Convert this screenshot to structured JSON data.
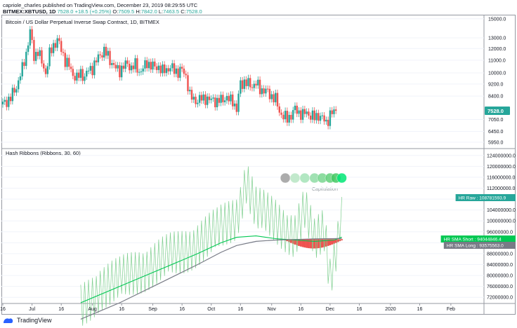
{
  "header": {
    "line1": "capriole_charles published on TradingView.com, December 23, 2019 08:29:55 UTC",
    "symbol": "BITMEX:XBTUSD, 1D",
    "last": "7528.0",
    "change": "+18.5 (+0.25%)",
    "open_label": "O:",
    "open": "7509.5",
    "high_label": "H:",
    "high": "7842.0",
    "low_label": "L:",
    "low": "7463.5",
    "close_label": "C:",
    "close": "7528.0"
  },
  "price_pane": {
    "title": "Bitcoin / US Dollar Perpetual Inverse Swap Contract, 1D, BITMEX",
    "last_badge": "7528.0",
    "colors": {
      "up": "#26a69a",
      "down": "#ef5350",
      "badge": "#26a69a"
    }
  },
  "indicator_pane": {
    "title": "Hash Ribbons (Ribbons, 30, 60)",
    "capitulation_label": "Capitulation",
    "badges": [
      {
        "label": "HR Raw",
        "value": "108781593.9",
        "color": "#26a69a"
      },
      {
        "label": "HR SMA Short",
        "value": "94044846.4",
        "color": "#00c853"
      },
      {
        "label": "HR SMA Long",
        "value": "93575563.0",
        "color": "#787b86"
      }
    ]
  },
  "footer": {
    "brand": "TradingView"
  },
  "chart_data": [
    {
      "type": "candlestick",
      "title": "Bitcoin / US Dollar Perpetual Inverse Swap Contract, 1D, BITMEX",
      "scale": "log",
      "y_ticks": [
        5950,
        6450,
        7050,
        7528,
        8400,
        9200,
        10000,
        11000,
        12000,
        13000,
        15000
      ],
      "x_ticks": [
        "16",
        "Jul",
        "16",
        "Aug",
        "16",
        "Sep",
        "16",
        "Oct",
        "16",
        "Nov",
        "16",
        "Dec",
        "16",
        "2020",
        "16",
        "Feb"
      ],
      "x_range_days": [
        0,
        247
      ],
      "x_tick_days": [
        0,
        15,
        30,
        46,
        61,
        77,
        92,
        107,
        122,
        138,
        153,
        168,
        183,
        199,
        214,
        230
      ],
      "close_path": [
        [
          0,
          7900
        ],
        [
          4,
          8300
        ],
        [
          7,
          9000
        ],
        [
          10,
          10300
        ],
        [
          12,
          11600
        ],
        [
          14,
          13600
        ],
        [
          16,
          11300
        ],
        [
          18,
          11800
        ],
        [
          20,
          10800
        ],
        [
          22,
          10000
        ],
        [
          24,
          11500
        ],
        [
          26,
          12300
        ],
        [
          28,
          12800
        ],
        [
          30,
          11900
        ],
        [
          32,
          11000
        ],
        [
          34,
          10500
        ],
        [
          36,
          9900
        ],
        [
          38,
          9600
        ],
        [
          40,
          10000
        ],
        [
          42,
          9700
        ],
        [
          44,
          10200
        ],
        [
          46,
          10400
        ],
        [
          48,
          10900
        ],
        [
          50,
          11500
        ],
        [
          52,
          11800
        ],
        [
          54,
          11300
        ],
        [
          56,
          10800
        ],
        [
          58,
          10300
        ],
        [
          60,
          10200
        ],
        [
          62,
          10500
        ],
        [
          64,
          10700
        ],
        [
          66,
          10400
        ],
        [
          68,
          10600
        ],
        [
          70,
          10100
        ],
        [
          72,
          10300
        ],
        [
          74,
          10800
        ],
        [
          76,
          10600
        ],
        [
          78,
          10400
        ],
        [
          80,
          10500
        ],
        [
          82,
          10100
        ],
        [
          84,
          10300
        ],
        [
          86,
          10400
        ],
        [
          88,
          10200
        ],
        [
          90,
          10100
        ],
        [
          92,
          10200
        ],
        [
          94,
          9800
        ],
        [
          96,
          8400
        ],
        [
          98,
          8200
        ],
        [
          100,
          8100
        ],
        [
          102,
          8250
        ],
        [
          104,
          8300
        ],
        [
          106,
          8100
        ],
        [
          108,
          8250
        ],
        [
          110,
          8000
        ],
        [
          112,
          8200
        ],
        [
          114,
          8300
        ],
        [
          116,
          8150
        ],
        [
          118,
          8200
        ],
        [
          120,
          7500
        ],
        [
          122,
          9300
        ],
        [
          124,
          9300
        ],
        [
          126,
          9200
        ],
        [
          128,
          9100
        ],
        [
          130,
          9200
        ],
        [
          132,
          8900
        ],
        [
          134,
          8750
        ],
        [
          136,
          8650
        ],
        [
          138,
          8400
        ],
        [
          140,
          8200
        ],
        [
          142,
          7500
        ],
        [
          144,
          7200
        ],
        [
          146,
          7100
        ],
        [
          148,
          7300
        ],
        [
          150,
          7600
        ],
        [
          152,
          7450
        ],
        [
          154,
          7300
        ],
        [
          156,
          7450
        ],
        [
          158,
          7250
        ],
        [
          160,
          7150
        ],
        [
          162,
          7300
        ],
        [
          164,
          7100
        ],
        [
          166,
          6900
        ],
        [
          168,
          7300
        ],
        [
          170,
          7450
        ],
        [
          171,
          7528
        ]
      ]
    },
    {
      "type": "line",
      "title": "Hash Ribbons (Ribbons, 30, 60)",
      "y_ticks": [
        72000000,
        76000000,
        80000000,
        84000000,
        88000000,
        92000000,
        96000000,
        100000000,
        104000000,
        108000000,
        112000000,
        116000000,
        120000000,
        124000000
      ],
      "series": [
        {
          "name": "HR Raw",
          "color": "#26a69a",
          "points": [
            [
              40,
              68000000
            ],
            [
              50,
              76000000
            ],
            [
              60,
              78000000
            ],
            [
              70,
              82000000
            ],
            [
              80,
              85000000
            ],
            [
              90,
              88000000
            ],
            [
              100,
              92000000
            ],
            [
              110,
              96000000
            ],
            [
              120,
              102000000
            ],
            [
              125,
              115000000
            ],
            [
              130,
              104000000
            ],
            [
              140,
              100000000
            ],
            [
              150,
              95000000
            ],
            [
              155,
              104000000
            ],
            [
              160,
              92000000
            ],
            [
              165,
              97000000
            ],
            [
              168,
              80000000
            ],
            [
              172,
              94000000
            ],
            [
              174,
              108781593.9
            ]
          ]
        },
        {
          "name": "HR SMA Short",
          "color": "#00c853",
          "points": [
            [
              40,
              70000000
            ],
            [
              60,
              76000000
            ],
            [
              80,
              82000000
            ],
            [
              100,
              88000000
            ],
            [
              112,
              92000000
            ],
            [
              120,
              94000000
            ],
            [
              130,
              94500000
            ],
            [
              140,
              93500000
            ],
            [
              150,
              93000000
            ],
            [
              160,
              92500000
            ],
            [
              170,
              93000000
            ],
            [
              174,
              94044846.4
            ]
          ]
        },
        {
          "name": "HR SMA Long",
          "color": "#787b86",
          "points": [
            [
              40,
              64000000
            ],
            [
              60,
              70000000
            ],
            [
              80,
              77000000
            ],
            [
              100,
              84000000
            ],
            [
              112,
              88500000
            ],
            [
              120,
              91000000
            ],
            [
              130,
              92500000
            ],
            [
              140,
              93000000
            ],
            [
              150,
              93200000
            ],
            [
              160,
              93400000
            ],
            [
              170,
              93500000
            ],
            [
              174,
              93575563.0
            ]
          ]
        }
      ],
      "ribbon": {
        "start_day": 145,
        "end_day": 174,
        "color": "#ef5350"
      },
      "capitulation_markers": {
        "days": [
          145,
          150,
          155,
          160,
          164,
          168,
          171,
          174
        ],
        "colors": [
          "#9e9e9e",
          "#b7e5c3",
          "#a5e3b7",
          "#8fdca4",
          "#79d68f",
          "#62d07a",
          "#43c862",
          "#00e676"
        ]
      }
    }
  ]
}
